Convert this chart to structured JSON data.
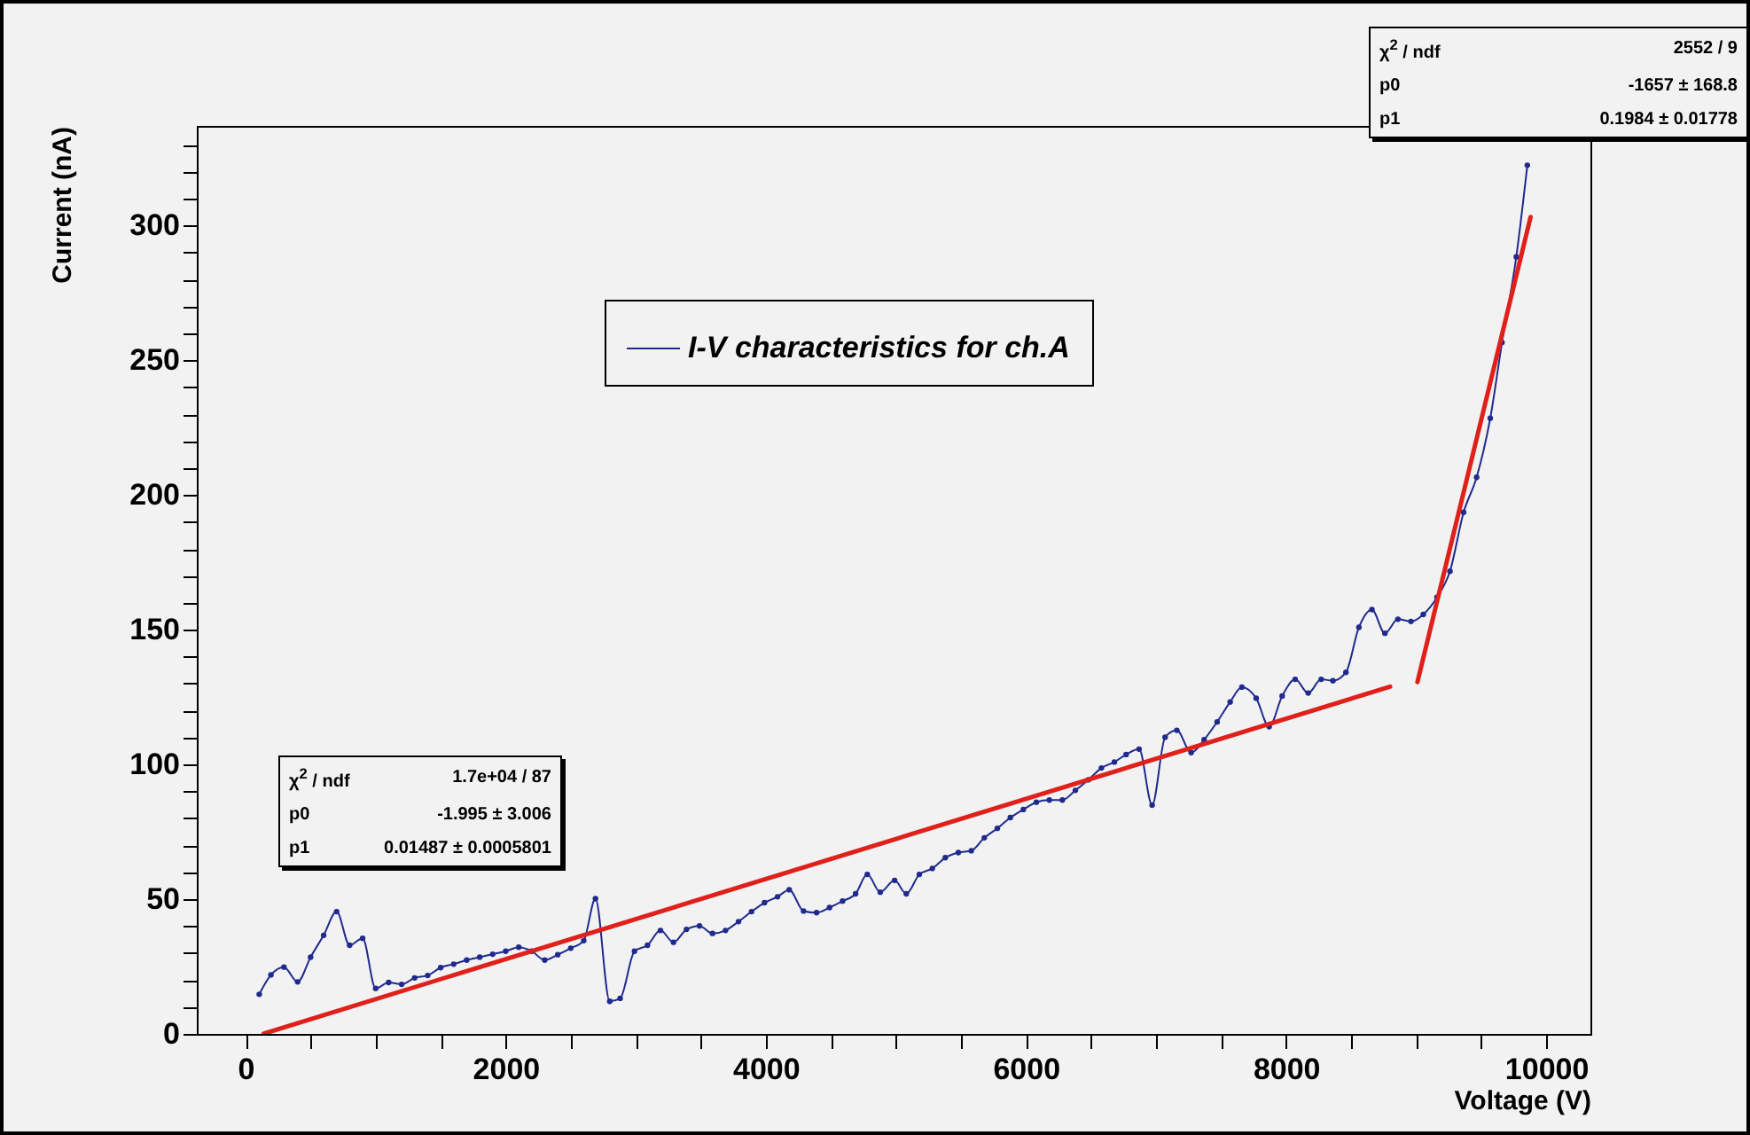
{
  "chart_data": {
    "type": "line",
    "xlabel": "Voltage (V)",
    "ylabel": "Current (nA)",
    "xlim": [
      -375,
      10340
    ],
    "ylim": [
      0,
      337
    ],
    "xticks": [
      0,
      {
        "value": 500,
        "label": null
      },
      {
        "value": 1000,
        "label": null
      },
      {
        "value": 1500,
        "label": null
      },
      2000,
      {
        "value": 2500,
        "label": null
      },
      {
        "value": 3000,
        "label": null
      },
      {
        "value": 3500,
        "label": null
      },
      4000,
      {
        "value": 4500,
        "label": null
      },
      {
        "value": 5000,
        "label": null
      },
      {
        "value": 5500,
        "label": null
      },
      6000,
      {
        "value": 6500,
        "label": null
      },
      {
        "value": 7000,
        "label": null
      },
      {
        "value": 7500,
        "label": null
      },
      8000,
      {
        "value": 8500,
        "label": null
      },
      {
        "value": 9000,
        "label": null
      },
      {
        "value": 9500,
        "label": null
      },
      10000
    ],
    "yticks": [
      0,
      {
        "value": 10,
        "label": null
      },
      {
        "value": 20,
        "label": null
      },
      {
        "value": 30,
        "label": null
      },
      {
        "value": 40,
        "label": null
      },
      50,
      {
        "value": 60,
        "label": null
      },
      {
        "value": 70,
        "label": null
      },
      {
        "value": 80,
        "label": null
      },
      {
        "value": 90,
        "label": null
      },
      100,
      {
        "value": 110,
        "label": null
      },
      {
        "value": 120,
        "label": null
      },
      {
        "value": 130,
        "label": null
      },
      {
        "value": 140,
        "label": null
      },
      150,
      {
        "value": 160,
        "label": null
      },
      {
        "value": 170,
        "label": null
      },
      {
        "value": 180,
        "label": null
      },
      {
        "value": 190,
        "label": null
      },
      200,
      {
        "value": 210,
        "label": null
      },
      {
        "value": 220,
        "label": null
      },
      {
        "value": 230,
        "label": null
      },
      {
        "value": 240,
        "label": null
      },
      250,
      {
        "value": 260,
        "label": null
      },
      {
        "value": 270,
        "label": null
      },
      {
        "value": 280,
        "label": null
      },
      {
        "value": 290,
        "label": null
      },
      300,
      {
        "value": 310,
        "label": null
      },
      {
        "value": 320,
        "label": null
      },
      {
        "value": 330,
        "label": null
      }
    ],
    "grid": false,
    "legend": "top",
    "marker": "circle",
    "line_style": "solid",
    "series": [
      {
        "name": "I-V characteristics for ch.A",
        "color": "#1f2a8c",
        "type": "line",
        "x": [
          105,
          195,
          295,
          400,
          500,
          600,
          700,
          800,
          900,
          1000,
          1100,
          1200,
          1300,
          1400,
          1500,
          1600,
          1700,
          1800,
          1900,
          2000,
          2100,
          2200,
          2300,
          2400,
          2500,
          2600,
          2690,
          2800,
          2880,
          2990,
          3090,
          3190,
          3290,
          3390,
          3490,
          3590,
          3690,
          3790,
          3890,
          3990,
          4090,
          4180,
          4290,
          4390,
          4490,
          4590,
          4690,
          4780,
          4880,
          4990,
          5080,
          5180,
          5280,
          5380,
          5480,
          5580,
          5680,
          5780,
          5880,
          5980,
          6080,
          6180,
          6280,
          6380,
          6480,
          6580,
          6680,
          6770,
          6870,
          6970,
          7070,
          7160,
          7270,
          7370,
          7470,
          7570,
          7660,
          7770,
          7870,
          7970,
          8070,
          8170,
          8270,
          8360,
          8460,
          8560,
          8660,
          8760,
          8860,
          8960,
          9055,
          9160,
          9260,
          9365,
          9465,
          9570,
          9660,
          9770,
          9855
        ],
        "values": [
          14.7,
          21.9,
          24.8,
          19.3,
          28.5,
          36.6,
          45.4,
          32.9,
          35.5,
          16.9,
          19.1,
          18.4,
          20.8,
          21.7,
          24.6,
          25.9,
          27.4,
          28.5,
          29.6,
          30.7,
          32.2,
          30.7,
          27.4,
          29.4,
          31.8,
          34.6,
          50.2,
          12.1,
          13.2,
          30.7,
          32.9,
          38.4,
          34.0,
          38.8,
          40.1,
          37.3,
          38.4,
          41.7,
          45.4,
          48.7,
          50.9,
          53.5,
          45.6,
          45.0,
          46.9,
          49.3,
          52.0,
          59.2,
          52.6,
          57.0,
          52.0,
          59.2,
          61.4,
          65.4,
          67.3,
          68.0,
          72.8,
          76.3,
          80.3,
          83.3,
          86.0,
          86.8,
          86.8,
          90.4,
          94.3,
          98.7,
          100.9,
          103.7,
          105.7,
          84.9,
          110.1,
          112.7,
          104.4,
          109.2,
          115.8,
          123.2,
          128.7,
          124.6,
          114.0,
          125.4,
          131.6,
          126.5,
          131.6,
          131.1,
          134.2,
          150.9,
          157.5,
          148.7,
          153.9,
          153.1,
          155.7,
          162,
          171.7,
          193.6,
          206.6,
          228.5,
          256.6,
          288.4,
          322.4
        ]
      },
      {
        "color": "#e0201b",
        "type": "line",
        "marker": "none",
        "x": [
          140,
          8800
        ],
        "values": [
          0.1,
          128.9
        ]
      },
      {
        "color": "#e0201b",
        "type": "line",
        "marker": "none",
        "x": [
          9010,
          9880
        ],
        "values": [
          130.6,
          303.2
        ]
      }
    ],
    "annotations": [
      "χ$^{2}$ / ndf",
      "1.7e+04 / 87",
      "p0",
      "-1.995 ± 3.006",
      "p1",
      "0.01487 ± 0.0005801",
      "χ$^{2}$ / ndf",
      "2552 / 9",
      "p0",
      "-1657 ± 168.8",
      "p1",
      "0.1984 ± 0.01778"
    ]
  }
}
